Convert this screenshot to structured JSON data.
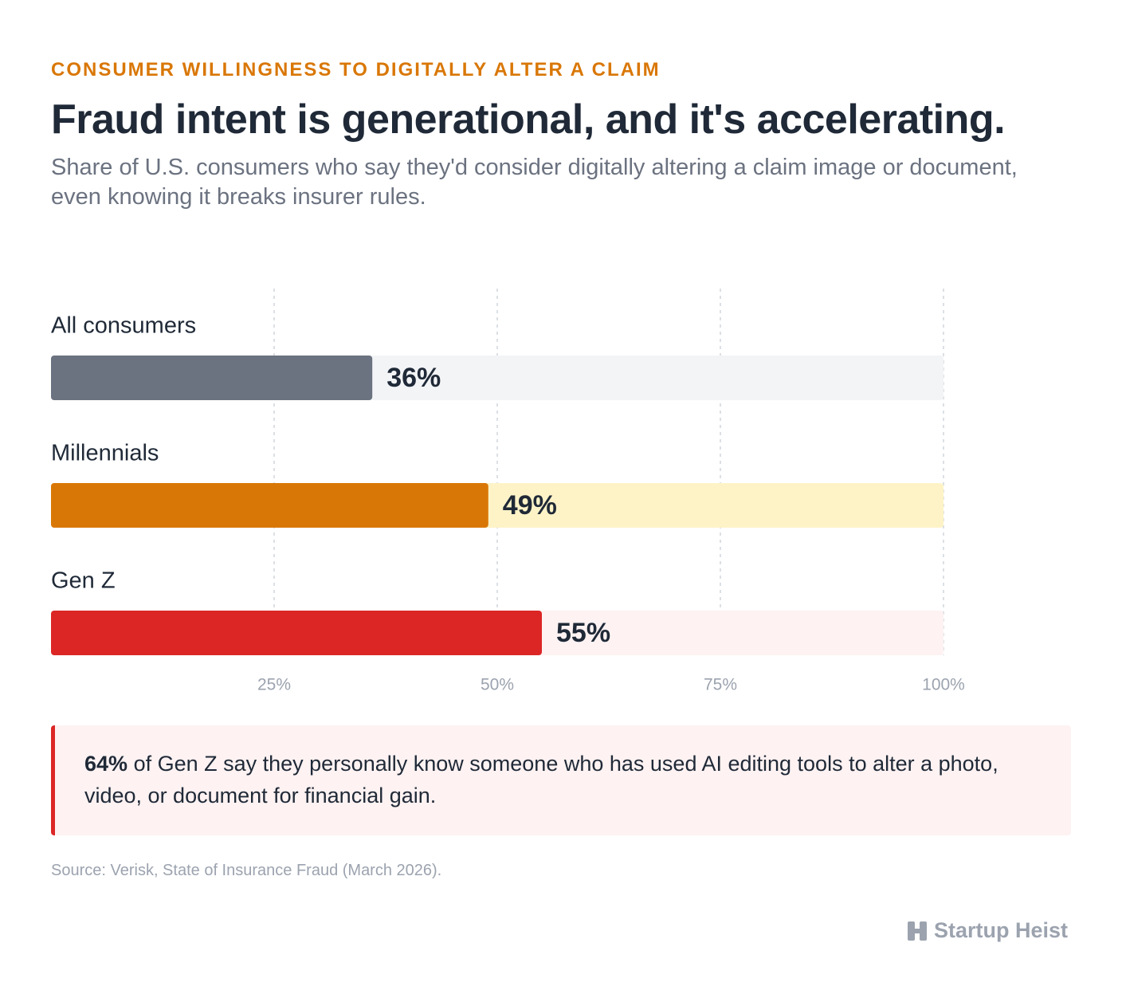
{
  "chart_data": {
    "type": "bar",
    "eyebrow": "CONSUMER WILLINGNESS TO DIGITALLY ALTER A CLAIM",
    "title": "Fraud intent is generational, and it's accelerating.",
    "subtitle": "Share of U.S. consumers who say they'd consider digitally altering a claim image or document, even knowing it breaks insurer rules.",
    "categories": [
      "All consumers",
      "Millennials",
      "Gen Z"
    ],
    "values": [
      36,
      49,
      55
    ],
    "value_labels": [
      "36%",
      "49%",
      "55%"
    ],
    "colors": [
      "#6b7280",
      "#d97706",
      "#dc2626"
    ],
    "track_colors": [
      "#f3f4f6",
      "#fef3c7",
      "#fef2f2"
    ],
    "xlim": [
      0,
      100
    ],
    "xticks": [
      {
        "value": 25,
        "label": "25%"
      },
      {
        "value": 50,
        "label": "50%"
      },
      {
        "value": 75,
        "label": "75%"
      },
      {
        "value": 100,
        "label": "100%"
      }
    ],
    "grid": true
  },
  "callout": {
    "highlight": "64%",
    "text": "of Gen Z say they personally know someone who has used AI editing tools to alter a photo, video, or document for financial gain."
  },
  "source": "Source: Verisk, State of Insurance Fraud (March 2026).",
  "brand": "Startup Heist"
}
